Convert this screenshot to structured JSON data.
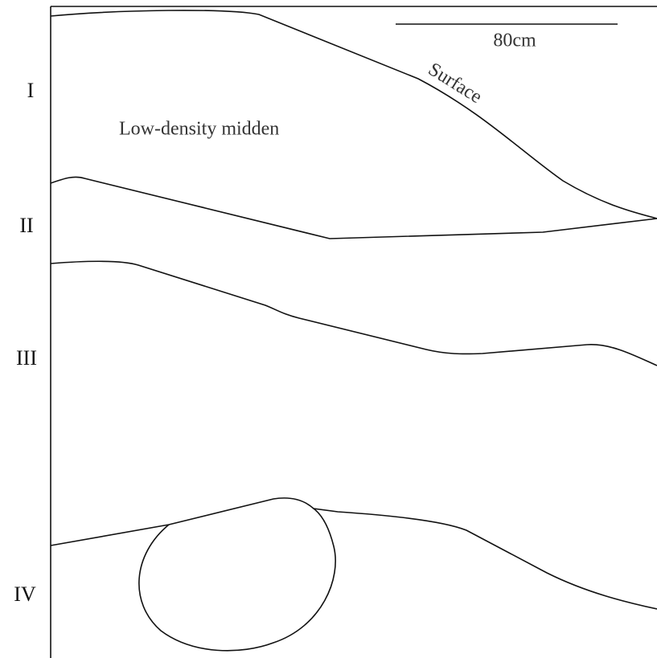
{
  "layers": [
    "I",
    "II",
    "III",
    "IV"
  ],
  "annotations": {
    "deposit": "Low-density midden",
    "surface": "Surface"
  },
  "scale_bar": {
    "label": "80cm"
  }
}
